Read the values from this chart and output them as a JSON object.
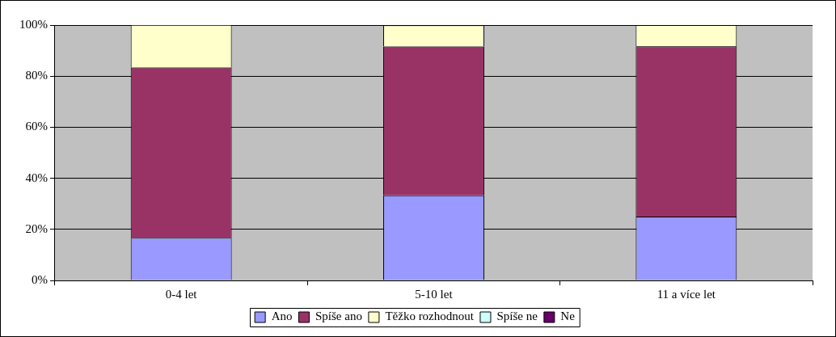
{
  "chart_data": {
    "type": "bar",
    "stacked": true,
    "categories": [
      "0-4 let",
      "5-10 let",
      "11 a více let"
    ],
    "series": [
      {
        "name": "Ano",
        "color": "#9999ff",
        "values": [
          16.7,
          33.3,
          25
        ]
      },
      {
        "name": "Spíše ano",
        "color": "#993366",
        "values": [
          66.7,
          58.3,
          66.7
        ]
      },
      {
        "name": "Těžko rozhodnout",
        "color": "#ffffcc",
        "values": [
          16.7,
          8.3,
          8.3
        ]
      },
      {
        "name": "Spíše ne",
        "color": "#ccffff",
        "values": [
          0,
          0,
          0
        ]
      },
      {
        "name": "Ne",
        "color": "#660066",
        "values": [
          0,
          0,
          0
        ]
      }
    ],
    "ylim": [
      0,
      100
    ],
    "yticks": [
      {
        "value": 0,
        "label": "0%"
      },
      {
        "value": 20,
        "label": "20%"
      },
      {
        "value": 40,
        "label": "40%"
      },
      {
        "value": 60,
        "label": "60%"
      },
      {
        "value": 80,
        "label": "80%"
      },
      {
        "value": 100,
        "label": "100%"
      }
    ],
    "grid": "y",
    "legend": "bottom"
  }
}
